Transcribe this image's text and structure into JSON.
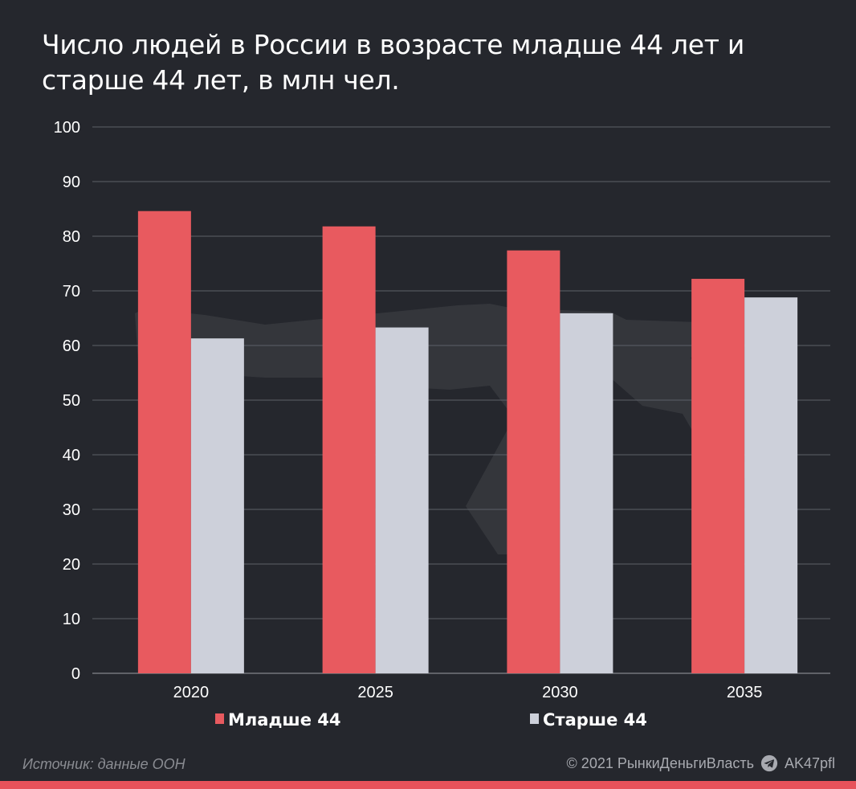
{
  "title": "Число людей в России в возрасте младше 44 лет и старше 44 лет, в млн чел.",
  "source": "Источник: данные ООН",
  "credit": {
    "copyright": "© 2021  РынкиДеньгиВласть",
    "channel": "AK47pfl",
    "icon": "telegram-icon"
  },
  "colors": {
    "background": "#25272d",
    "younger": "#e85a5f",
    "older": "#cdd0da",
    "accent_bar": "#e8525a"
  },
  "chart_data": {
    "type": "bar",
    "categories": [
      "2020",
      "2025",
      "2030",
      "2035"
    ],
    "series": [
      {
        "name": "Младше 44",
        "values": [
          84.6,
          81.8,
          77.4,
          72.2
        ]
      },
      {
        "name": "Старше 44",
        "values": [
          61.3,
          63.3,
          65.9,
          68.8
        ]
      }
    ],
    "y_ticks": [
      "0",
      "10",
      "20",
      "30",
      "40",
      "50",
      "60",
      "70",
      "80",
      "90",
      "100"
    ],
    "ylim": [
      0,
      100
    ],
    "grid": true,
    "legend": "bottom"
  }
}
